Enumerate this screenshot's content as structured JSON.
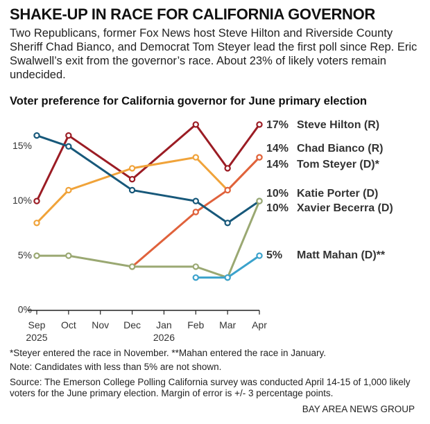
{
  "chart_data": {
    "type": "line",
    "title": "SHAKE-UP IN RACE FOR CALIFORNIA GOVERNOR",
    "subtitle": "Two Republicans, former Fox News host Steve Hilton and Riverside County Sheriff Chad Bianco, and Democrat Tom Steyer lead the first poll since Rep. Eric Swalwell’s exit from the governor’s race. About 23% of likely voters remain undecided.",
    "chart_title": "Voter preference for California governor for June primary election",
    "categories": [
      "Sep 2025",
      "Oct",
      "Nov",
      "Dec",
      "Jan 2026",
      "Feb",
      "Mar",
      "Apr"
    ],
    "ylim": [
      0,
      18
    ],
    "yticks": [
      {
        "value": 0,
        "label": "0%"
      },
      {
        "value": 5,
        "label": "5%"
      },
      {
        "value": 10,
        "label": "10%"
      },
      {
        "value": 15,
        "label": "15%"
      }
    ],
    "series": [
      {
        "name": "Steve Hilton (R)",
        "color": "#9b1c24",
        "last_label": "17%",
        "x": [
          "Sep 2025",
          "Oct",
          "Dec",
          "Feb",
          "Mar",
          "Apr"
        ],
        "values": [
          10,
          16,
          12,
          17,
          13,
          17
        ]
      },
      {
        "name": "Chad Bianco (R)",
        "color": "#f0a33a",
        "last_label": "14%",
        "x": [
          "Sep 2025",
          "Oct",
          "Dec",
          "Feb",
          "Mar",
          "Apr"
        ],
        "values": [
          8,
          11,
          13,
          14,
          11,
          14
        ]
      },
      {
        "name": "Tom Steyer (D)*",
        "color": "#e0623c",
        "last_label": "14%",
        "x": [
          "Dec",
          "Feb",
          "Mar",
          "Apr"
        ],
        "values": [
          4,
          9,
          11,
          14
        ]
      },
      {
        "name": "Katie Porter (D)",
        "color": "#17587a",
        "last_label": "10%",
        "x": [
          "Sep 2025",
          "Oct",
          "Dec",
          "Feb",
          "Mar",
          "Apr"
        ],
        "values": [
          16,
          15,
          11,
          10,
          8,
          10
        ]
      },
      {
        "name": "Xavier Becerra (D)",
        "color": "#9aa872",
        "last_label": "10%",
        "x": [
          "Sep 2025",
          "Oct",
          "Dec",
          "Feb",
          "Mar",
          "Apr"
        ],
        "values": [
          5,
          5,
          4,
          4,
          3,
          10
        ]
      },
      {
        "name": "Matt Mahan (D)**",
        "color": "#3ba2cc",
        "last_label": "5%",
        "x": [
          "Feb",
          "Mar",
          "Apr"
        ],
        "values": [
          3,
          3,
          5
        ]
      }
    ],
    "notes": [
      "*Steyer entered the race in November. **Mahan entered the race in January.",
      "Note: Candidates with less than 5% are not shown.",
      "Source: The Emerson College Polling California survey was conducted April 14-15 of 1,000 likely voters for the June primary election. Margin of error is +/- 3 percentage points."
    ],
    "credit": "BAY AREA NEWS GROUP"
  }
}
